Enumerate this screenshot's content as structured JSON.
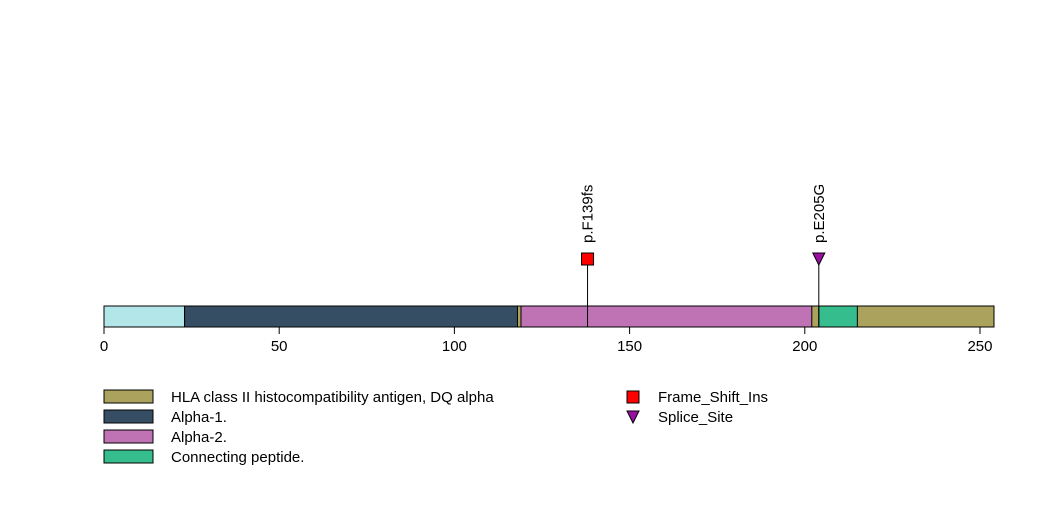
{
  "chart_data": {
    "type": "lollipop",
    "xlim": [
      0,
      254
    ],
    "ticks": [
      0,
      50,
      100,
      150,
      200,
      250
    ],
    "tick_labels": [
      "0",
      "50",
      "100",
      "150",
      "200",
      "250"
    ],
    "protein_length": 254,
    "backbone_color": "#b3e6e8",
    "domains": [
      {
        "name": "HLA class II histocompatibility antigen, DQ alpha",
        "start": 23,
        "end": 254,
        "color": "#aba35d"
      },
      {
        "name": "Alpha-1.",
        "start": 23,
        "end": 118,
        "color": "#364e63"
      },
      {
        "name": "Alpha-2.",
        "start": 119,
        "end": 202,
        "color": "#c073b4"
      },
      {
        "name": "Connecting peptide.",
        "start": 204,
        "end": 215,
        "color": "#35bd8d"
      }
    ],
    "mutations": [
      {
        "label": "p.F139fs",
        "position": 138,
        "type": "Frame_Shift_Ins"
      },
      {
        "label": "p.E205G",
        "position": 204,
        "type": "Splice_Site"
      }
    ],
    "mutation_types": [
      {
        "name": "Frame_Shift_Ins",
        "shape": "square",
        "color": "#ff0000"
      },
      {
        "name": "Splice_Site",
        "shape": "triangle-down",
        "color": "#9a0fa0"
      }
    ]
  }
}
